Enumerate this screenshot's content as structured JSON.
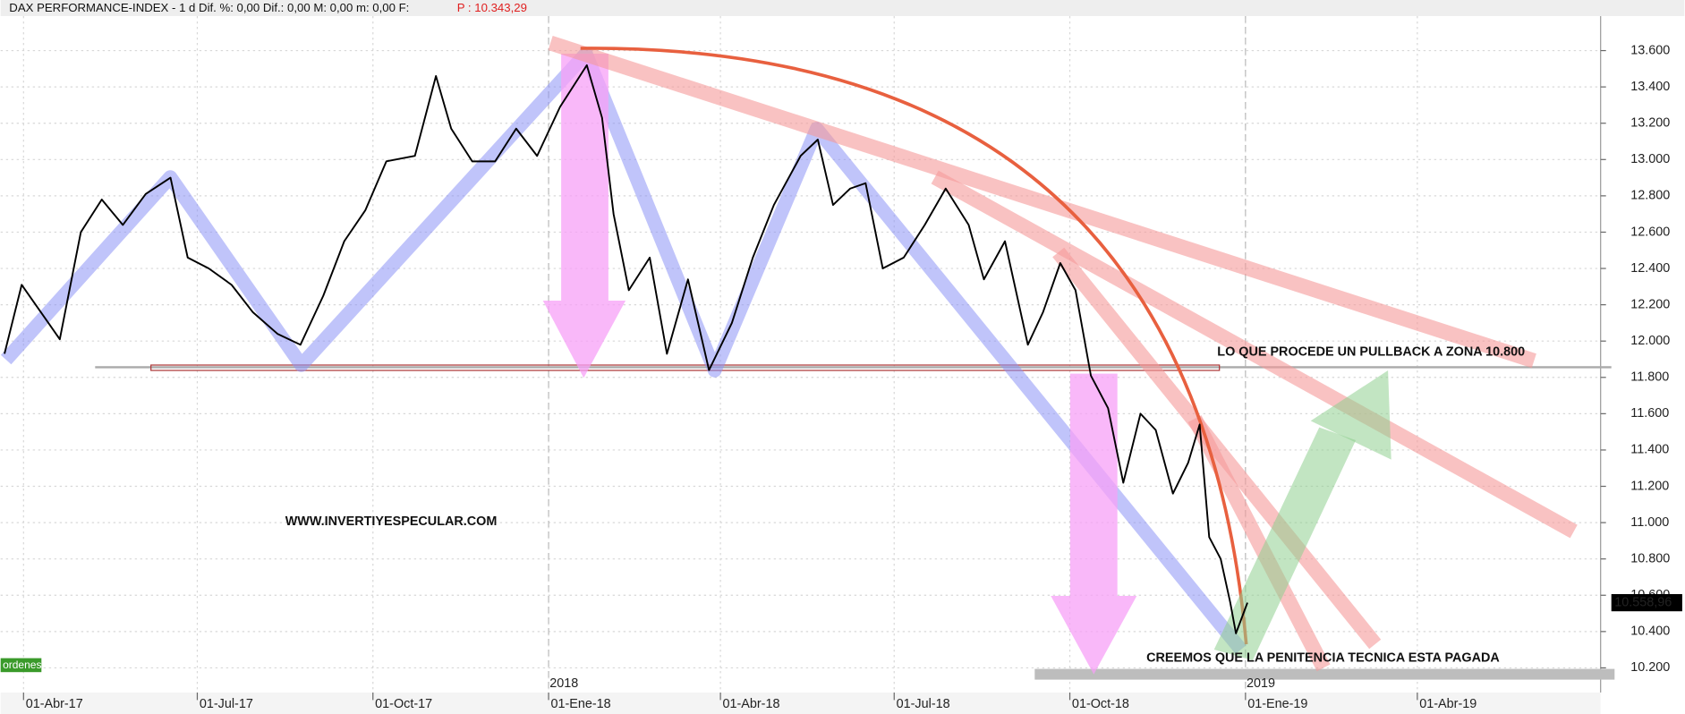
{
  "chart_data": {
    "type": "line",
    "title": "DAX PERFORMANCE-INDEX -  1 d Dif. %: 0,00 Dif.: 0,00 M: 0,00 m: 0,00 F:",
    "price_info": "P : 10.343,29",
    "color": "#000000",
    "x": [
      "2017-03-22",
      "2017-03-31",
      "2017-04-14",
      "2017-04-20",
      "2017-05-01",
      "2017-05-12",
      "2017-05-23",
      "2017-06-04",
      "2017-06-17",
      "2017-06-26",
      "2017-07-07",
      "2017-07-19",
      "2017-07-30",
      "2017-08-12",
      "2017-08-24",
      "2017-09-05",
      "2017-09-16",
      "2017-09-27",
      "2017-10-08",
      "2017-10-23",
      "2017-11-03",
      "2017-11-11",
      "2017-11-22",
      "2017-12-04",
      "2017-12-15",
      "2017-12-26",
      "2018-01-07",
      "2018-01-21",
      "2018-01-29",
      "2018-02-04",
      "2018-02-12",
      "2018-02-23",
      "2018-03-04",
      "2018-03-15",
      "2018-03-26",
      "2018-04-07",
      "2018-04-18",
      "2018-04-29",
      "2018-05-13",
      "2018-05-22",
      "2018-05-30",
      "2018-06-08",
      "2018-06-16",
      "2018-06-25",
      "2018-07-06",
      "2018-07-17",
      "2018-07-28",
      "2018-08-09",
      "2018-08-17",
      "2018-08-28",
      "2018-09-09",
      "2018-09-17",
      "2018-09-26",
      "2018-10-04",
      "2018-10-12",
      "2018-10-21",
      "2018-10-29",
      "2018-11-07",
      "2018-11-15",
      "2018-11-24",
      "2018-12-02",
      "2018-12-08",
      "2018-12-13",
      "2018-12-19",
      "2018-12-24",
      "2018-12-27",
      "2019-01-02"
    ],
    "values": [
      11930,
      12310,
      12100,
      12010,
      12600,
      12780,
      12640,
      12810,
      12900,
      12460,
      12400,
      12310,
      12160,
      12040,
      11980,
      12250,
      12550,
      12720,
      12990,
      13020,
      13460,
      13170,
      12990,
      12990,
      13170,
      13020,
      13290,
      13520,
      13230,
      12700,
      12280,
      12460,
      11930,
      12340,
      11840,
      12100,
      12460,
      12750,
      13020,
      13110,
      12750,
      12840,
      12870,
      12400,
      12460,
      12640,
      12840,
      12640,
      12340,
      12550,
      11980,
      12160,
      12430,
      12280,
      11810,
      11630,
      11220,
      11600,
      11510,
      11160,
      11330,
      11540,
      10920,
      10800,
      10560,
      10390,
      10559
    ],
    "xlim": [
      "2017-03-20",
      "2019-07-06"
    ],
    "xticks": [
      {
        "value": "2017-04-01",
        "label": "01-Abr-17"
      },
      {
        "value": "2017-07-01",
        "label": "01-Jul-17"
      },
      {
        "value": "2017-10-01",
        "label": "01-Oct-17"
      },
      {
        "value": "2018-01-01",
        "label": "01-Ene-18"
      },
      {
        "value": "2018-04-01",
        "label": "01-Abr-18"
      },
      {
        "value": "2018-07-01",
        "label": "01-Jul-18"
      },
      {
        "value": "2018-10-01",
        "label": "01-Oct-18"
      },
      {
        "value": "2019-01-01",
        "label": "01-Ene-19"
      },
      {
        "value": "2019-04-01",
        "label": "01-Abr-19"
      }
    ],
    "year_labels": [
      {
        "value": "2018-01-01",
        "label": "2018"
      },
      {
        "value": "2019-01-01",
        "label": "2019"
      }
    ],
    "ylim": [
      10005,
      13790
    ],
    "yticks": [
      {
        "value": 10200,
        "label": "10.200"
      },
      {
        "value": 10400,
        "label": "10.400"
      },
      {
        "value": 10600,
        "label": "10.600"
      },
      {
        "value": 10800,
        "label": "10.800"
      },
      {
        "value": 11000,
        "label": "11.000"
      },
      {
        "value": 11200,
        "label": "11.200"
      },
      {
        "value": 11400,
        "label": "11.400"
      },
      {
        "value": 11600,
        "label": "11.600"
      },
      {
        "value": 11800,
        "label": "11.800"
      },
      {
        "value": 12000,
        "label": "12.000"
      },
      {
        "value": 12200,
        "label": "12.200"
      },
      {
        "value": 12400,
        "label": "12.400"
      },
      {
        "value": 12600,
        "label": "12.600"
      },
      {
        "value": 12800,
        "label": "12.800"
      },
      {
        "value": 13000,
        "label": "13.000"
      },
      {
        "value": 13200,
        "label": "13.200"
      },
      {
        "value": 13400,
        "label": "13.400"
      },
      {
        "value": 13600,
        "label": "13.600"
      }
    ],
    "grid": true,
    "last_value": 10558.96,
    "last_label": "10.558,96",
    "annotations": [
      "LO QUE PROCEDE UN PULLBACK  A ZONA 10.800",
      "WWW.INVERTIYESPECULAR.COM",
      "CREEMOS QUE LA PENITENCIA TECNICA ESTA PAGADA"
    ],
    "button": "ordenes"
  }
}
